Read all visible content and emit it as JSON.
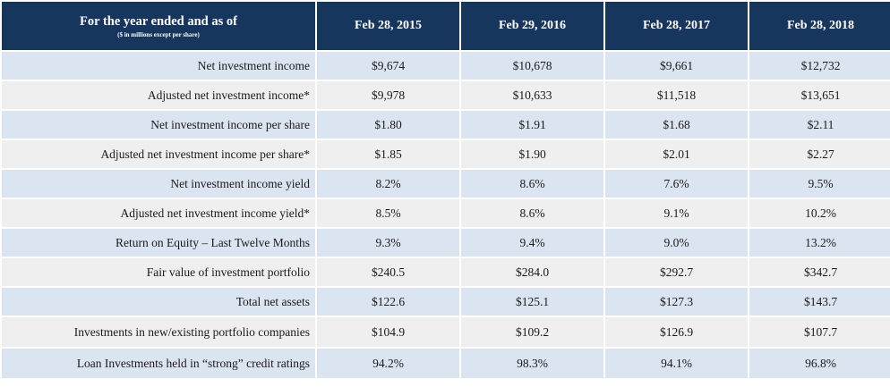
{
  "header": {
    "title": "For the year ended and as of",
    "note": "($ in millions except per share)",
    "columns": [
      "Feb 28, 2015",
      "Feb 29, 2016",
      "Feb 28, 2017",
      "Feb 28, 2018"
    ]
  },
  "rows": [
    {
      "label": "Net investment income",
      "values": [
        "$9,674",
        "$10,678",
        "$9,661",
        "$12,732"
      ]
    },
    {
      "label": "Adjusted net investment income*",
      "values": [
        "$9,978",
        "$10,633",
        "$11,518",
        "$13,651"
      ]
    },
    {
      "label": "Net investment income per share",
      "values": [
        "$1.80",
        "$1.91",
        "$1.68",
        "$2.11"
      ]
    },
    {
      "label": "Adjusted net investment income per share*",
      "values": [
        "$1.85",
        "$1.90",
        "$2.01",
        "$2.27"
      ]
    },
    {
      "label": "Net investment income yield",
      "values": [
        "8.2%",
        "8.6%",
        "7.6%",
        "9.5%"
      ]
    },
    {
      "label": "Adjusted net investment income yield*",
      "values": [
        "8.5%",
        "8.6%",
        "9.1%",
        "10.2%"
      ]
    },
    {
      "label": "Return on Equity – Last Twelve Months",
      "values": [
        "9.3%",
        "9.4%",
        "9.0%",
        "13.2%"
      ]
    },
    {
      "label": "Fair value of investment portfolio",
      "values": [
        "$240.5",
        "$284.0",
        "$292.7",
        "$342.7"
      ]
    },
    {
      "label": "Total net assets",
      "values": [
        "$122.6",
        "$125.1",
        "$127.3",
        "$143.7"
      ]
    },
    {
      "label": "Investments in new/existing portfolio companies",
      "values": [
        "$104.9",
        "$109.2",
        "$126.9",
        "$107.7"
      ]
    },
    {
      "label": "Loan Investments held in “strong” credit ratings",
      "values": [
        "94.2%",
        "98.3%",
        "94.1%",
        "96.8%"
      ]
    }
  ],
  "colors": {
    "header_bg": "#17365d",
    "row_odd": "#dbe5f1",
    "row_even": "#efefef"
  }
}
